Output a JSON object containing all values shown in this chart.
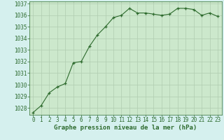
{
  "x": [
    0,
    1,
    2,
    3,
    4,
    5,
    6,
    7,
    8,
    9,
    10,
    11,
    12,
    13,
    14,
    15,
    16,
    17,
    18,
    19,
    20,
    21,
    22,
    23
  ],
  "y": [
    1027.6,
    1028.2,
    1029.3,
    1029.8,
    1030.1,
    1031.9,
    1032.0,
    1033.3,
    1034.3,
    1035.0,
    1035.8,
    1036.0,
    1036.6,
    1036.2,
    1036.2,
    1036.1,
    1036.0,
    1036.1,
    1036.6,
    1036.6,
    1036.5,
    1036.0,
    1036.2,
    1035.9
  ],
  "ylim": [
    1027.4,
    1037.2
  ],
  "yticks": [
    1028,
    1029,
    1030,
    1031,
    1032,
    1033,
    1034,
    1035,
    1036,
    1037
  ],
  "xlim": [
    -0.5,
    23.5
  ],
  "xticks": [
    0,
    1,
    2,
    3,
    4,
    5,
    6,
    7,
    8,
    9,
    10,
    11,
    12,
    13,
    14,
    15,
    16,
    17,
    18,
    19,
    20,
    21,
    22,
    23
  ],
  "xlabel": "Graphe pression niveau de la mer (hPa)",
  "line_color": "#2d6a2d",
  "marker": "+",
  "marker_size": 3.5,
  "bg_color": "#d5f0ee",
  "plot_bg_color": "#cce8cc",
  "grid_color": "#b0ccb0",
  "tick_label_color": "#2d6a2d",
  "xlabel_color": "#2d6a2d",
  "xlabel_fontsize": 6.5,
  "tick_fontsize": 5.5,
  "line_width": 0.8
}
